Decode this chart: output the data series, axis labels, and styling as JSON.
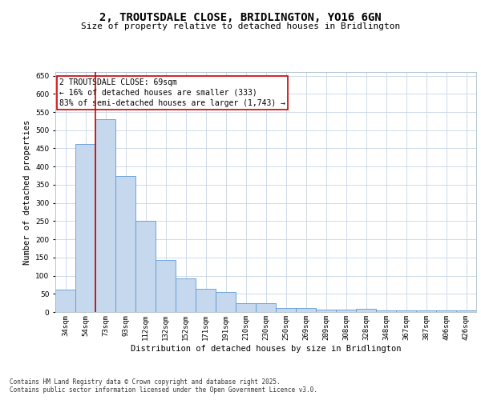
{
  "title": "2, TROUTSDALE CLOSE, BRIDLINGTON, YO16 6GN",
  "subtitle": "Size of property relative to detached houses in Bridlington",
  "xlabel": "Distribution of detached houses by size in Bridlington",
  "ylabel": "Number of detached properties",
  "categories": [
    "34sqm",
    "54sqm",
    "73sqm",
    "93sqm",
    "112sqm",
    "132sqm",
    "152sqm",
    "171sqm",
    "191sqm",
    "210sqm",
    "230sqm",
    "250sqm",
    "269sqm",
    "289sqm",
    "308sqm",
    "328sqm",
    "348sqm",
    "367sqm",
    "387sqm",
    "406sqm",
    "426sqm"
  ],
  "values": [
    62,
    462,
    530,
    375,
    250,
    142,
    92,
    63,
    55,
    25,
    25,
    10,
    10,
    6,
    6,
    8,
    4,
    4,
    4,
    4,
    4
  ],
  "bar_color": "#c5d8ed",
  "bar_edge_color": "#5b9bd5",
  "grid_color": "#c8d4e3",
  "background_color": "#ffffff",
  "annotation_text": "2 TROUTSDALE CLOSE: 69sqm\n← 16% of detached houses are smaller (333)\n83% of semi-detached houses are larger (1,743) →",
  "annotation_box_color": "#ffffff",
  "annotation_box_edge_color": "#cc0000",
  "red_line_x": 1.5,
  "ylim": [
    0,
    660
  ],
  "yticks": [
    0,
    50,
    100,
    150,
    200,
    250,
    300,
    350,
    400,
    450,
    500,
    550,
    600,
    650
  ],
  "footer_line1": "Contains HM Land Registry data © Crown copyright and database right 2025.",
  "footer_line2": "Contains public sector information licensed under the Open Government Licence v3.0.",
  "title_fontsize": 10,
  "subtitle_fontsize": 8,
  "axis_label_fontsize": 7.5,
  "tick_fontsize": 6.5,
  "annotation_fontsize": 7,
  "footer_fontsize": 5.5
}
